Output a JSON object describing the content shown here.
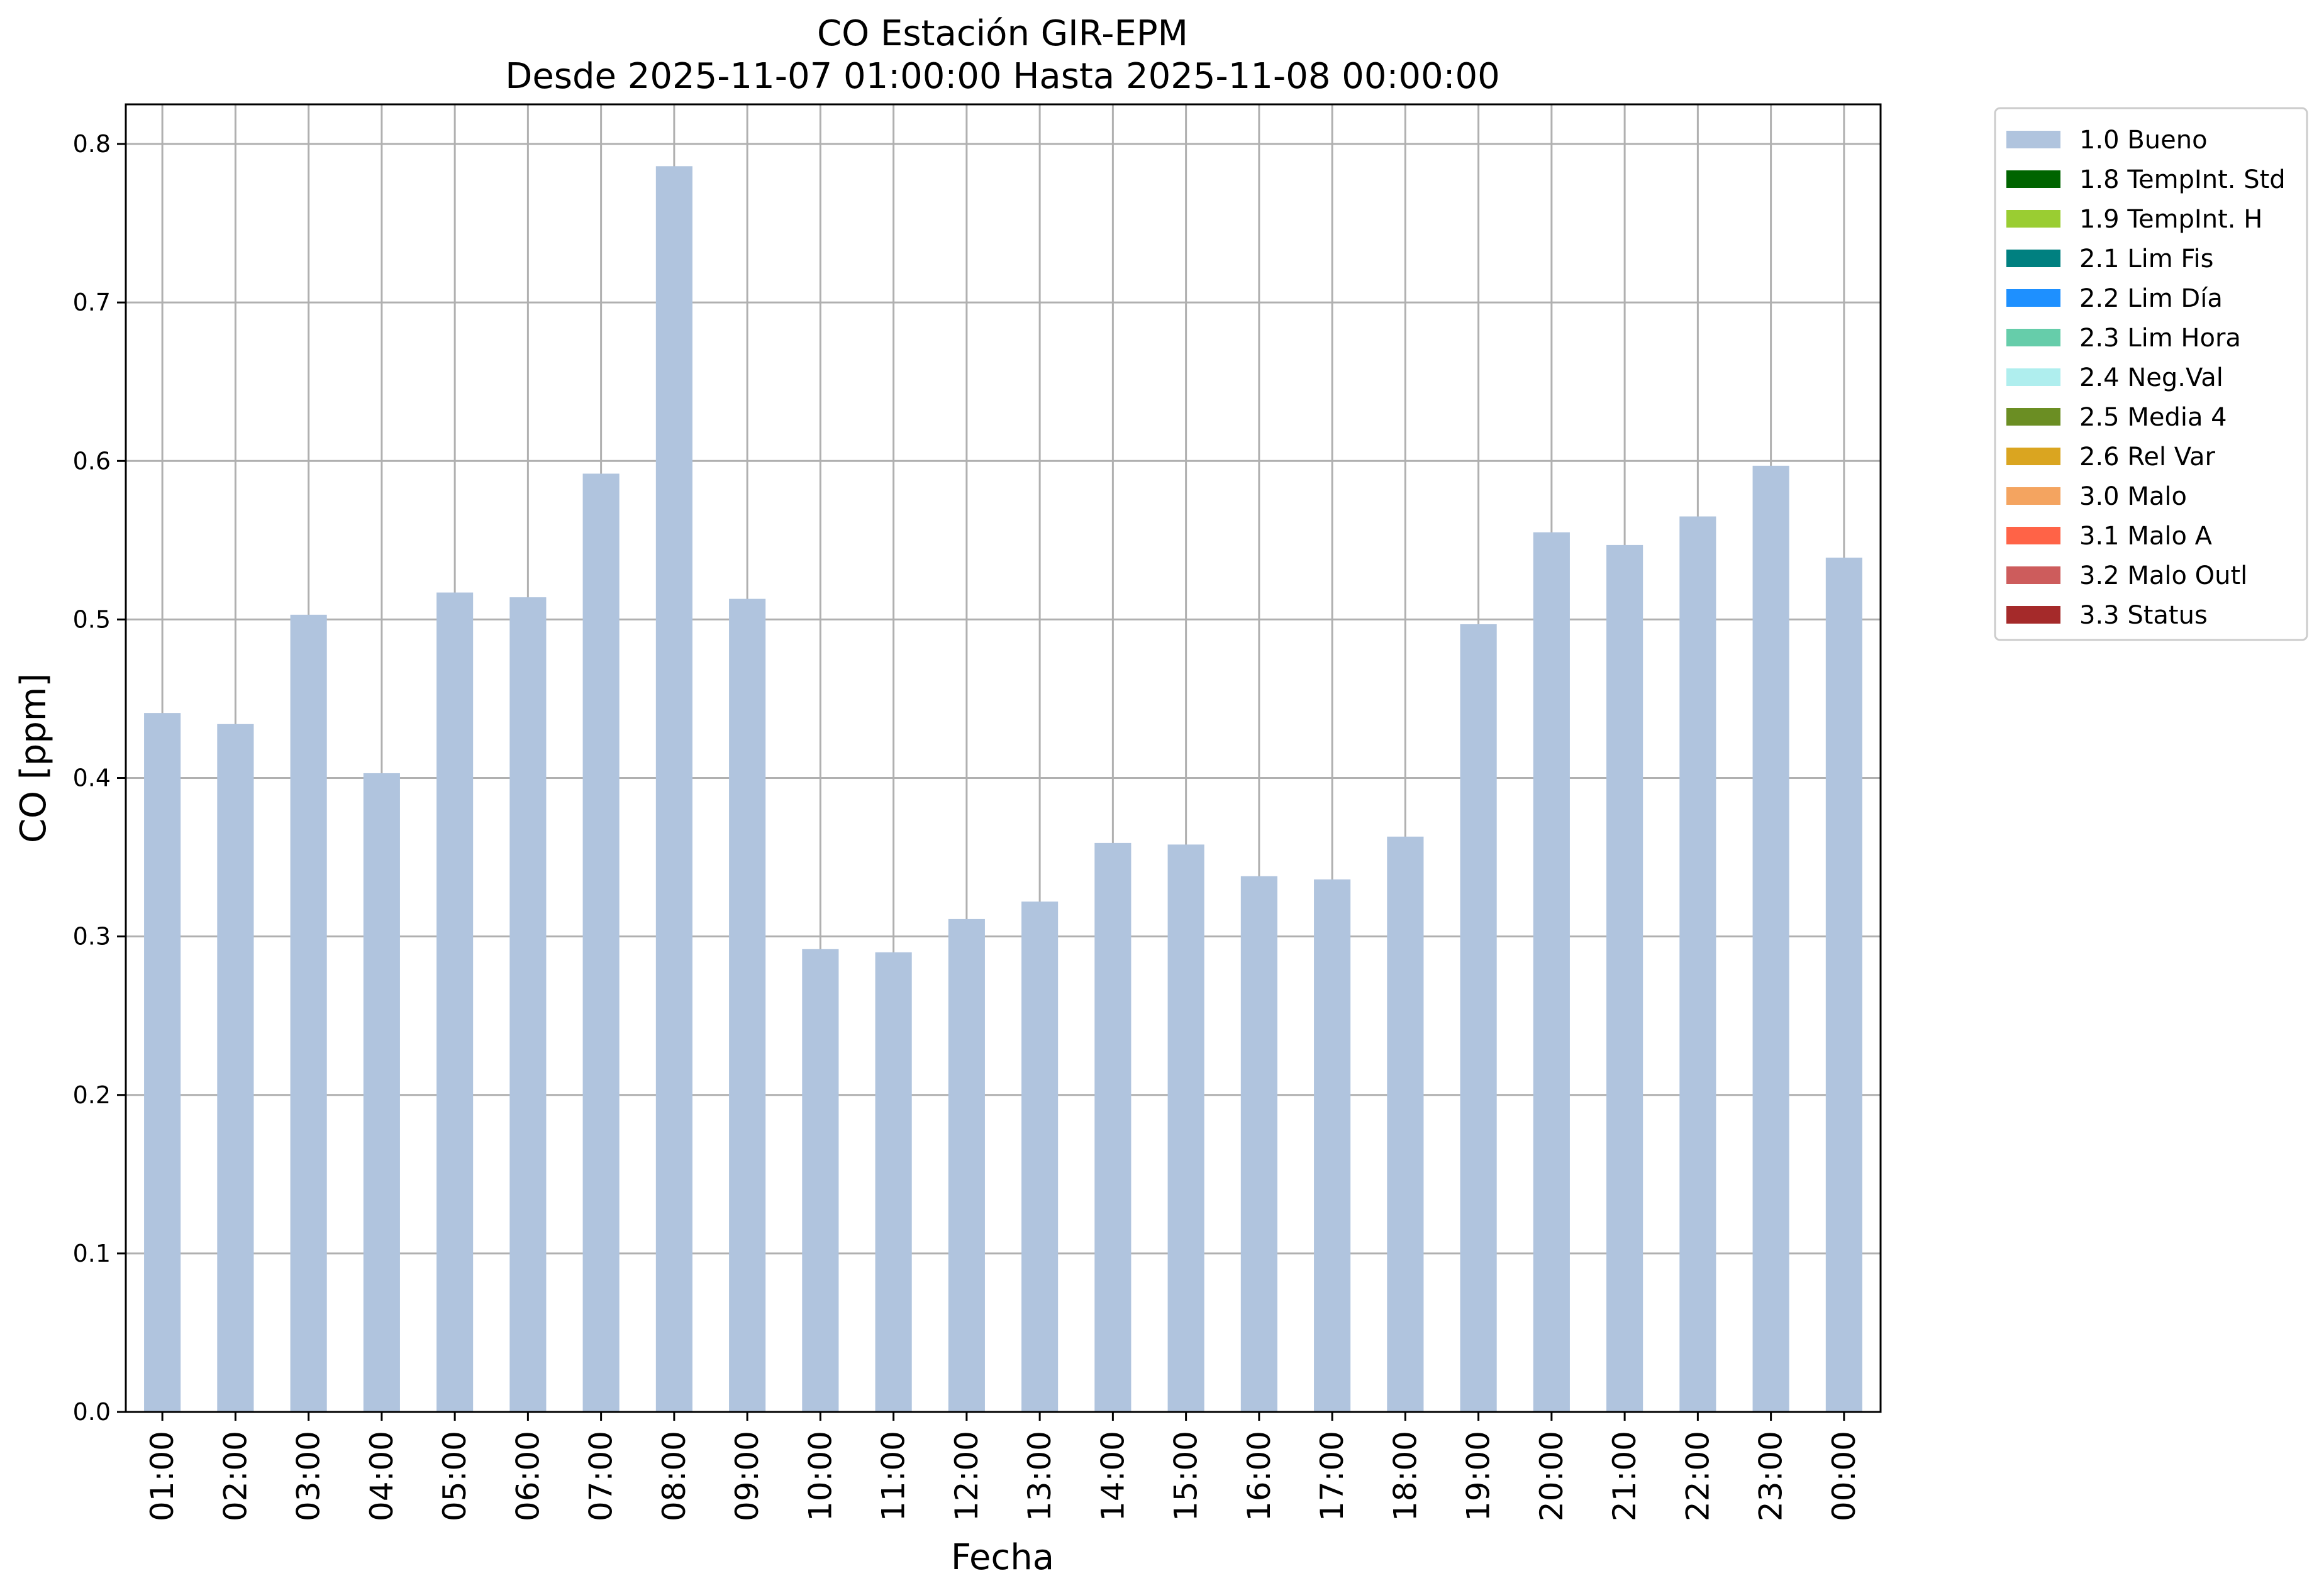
{
  "chart_data": {
    "type": "bar",
    "title": "CO Estación GIR-EPM",
    "subtitle": "Desde 2025-11-07 01:00:00 Hasta 2025-11-08 00:00:00",
    "xlabel": "Fecha",
    "ylabel": "CO [ppm]",
    "ylim": [
      0,
      0.825
    ],
    "yticks": [
      "0.0",
      "0.1",
      "0.2",
      "0.3",
      "0.4",
      "0.5",
      "0.6",
      "0.7",
      "0.8"
    ],
    "grid": true,
    "legend_position": "outside-right-top",
    "categories": [
      "01:00",
      "02:00",
      "03:00",
      "04:00",
      "05:00",
      "06:00",
      "07:00",
      "08:00",
      "09:00",
      "10:00",
      "11:00",
      "12:00",
      "13:00",
      "14:00",
      "15:00",
      "16:00",
      "17:00",
      "18:00",
      "19:00",
      "20:00",
      "21:00",
      "22:00",
      "23:00",
      "00:00"
    ],
    "series": [
      {
        "name": "1.0 Bueno",
        "color": "#b0c4de",
        "values": [
          0.441,
          0.434,
          0.503,
          0.403,
          0.517,
          0.514,
          0.592,
          0.786,
          0.513,
          0.292,
          0.29,
          0.311,
          0.322,
          0.359,
          0.358,
          0.338,
          0.336,
          0.363,
          0.497,
          0.555,
          0.547,
          0.565,
          0.597,
          0.539
        ]
      }
    ],
    "legend": [
      {
        "label": "1.0 Bueno",
        "color": "#b0c4de"
      },
      {
        "label": "1.8 TempInt. Std",
        "color": "#006400"
      },
      {
        "label": "1.9 TempInt. H",
        "color": "#9acd32"
      },
      {
        "label": "2.1 Lim Fis",
        "color": "#008080"
      },
      {
        "label": "2.2 Lim Día",
        "color": "#1e90ff"
      },
      {
        "label": "2.3 Lim Hora",
        "color": "#66cdaa"
      },
      {
        "label": "2.4 Neg.Val",
        "color": "#afeeee"
      },
      {
        "label": "2.5 Media 4",
        "color": "#6b8e23"
      },
      {
        "label": "2.6 Rel Var",
        "color": "#daa520"
      },
      {
        "label": "3.0 Malo",
        "color": "#f4a460"
      },
      {
        "label": "3.1 Malo A",
        "color": "#ff6347"
      },
      {
        "label": "3.2 Malo Outl",
        "color": "#cd5c5c"
      },
      {
        "label": "3.3 Status",
        "color": "#a52a2a"
      }
    ]
  }
}
